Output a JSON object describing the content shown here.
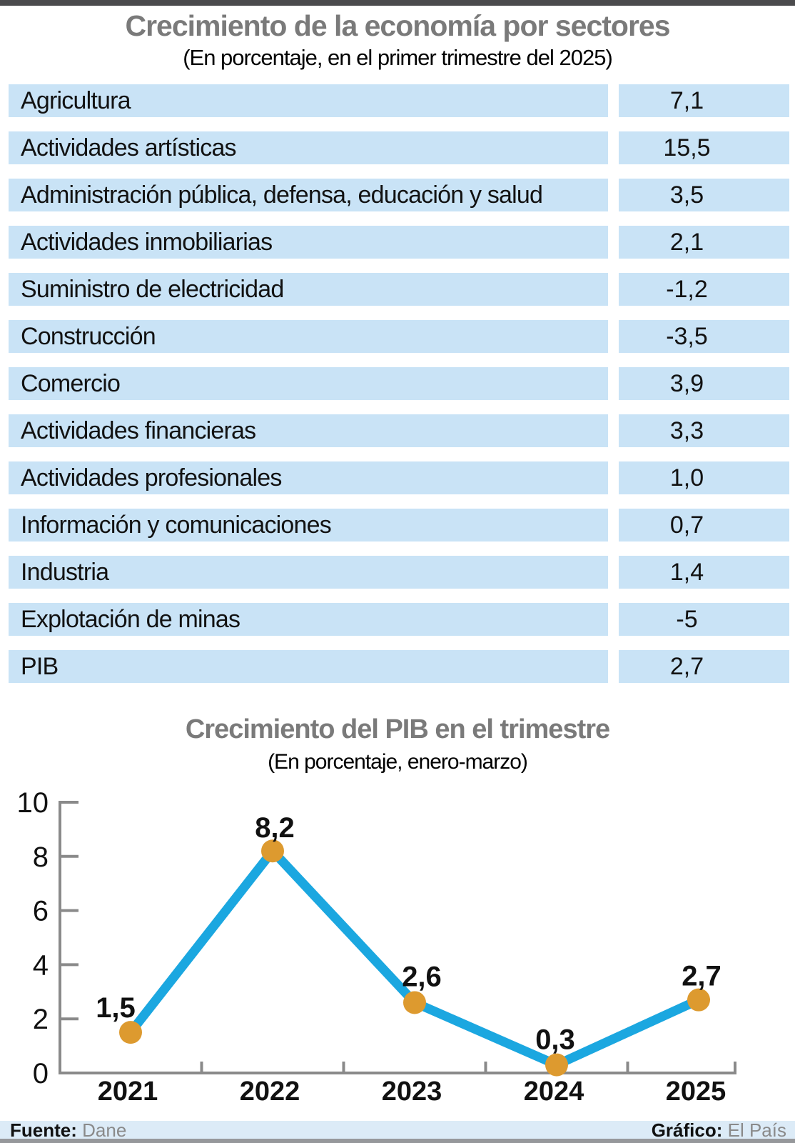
{
  "header": {
    "top_bar_color": "#4b4b4d",
    "title_color": "#7a7a7a"
  },
  "chart_data": [
    {
      "type": "table",
      "title": "Crecimiento de la economía por sectores",
      "subtitle": "(En porcentaje, en el primer trimestre del 2025)",
      "row_background": "#c9e3f6",
      "rows": [
        {
          "label": "Agricultura",
          "value": "7,1"
        },
        {
          "label": "Actividades artísticas",
          "value": "15,5"
        },
        {
          "label": "Administración pública, defensa, educación y salud",
          "value": "3,5"
        },
        {
          "label": "Actividades inmobiliarias",
          "value": "2,1"
        },
        {
          "label": "Suministro de electricidad",
          "value": "-1,2"
        },
        {
          "label": "Construcción",
          "value": "-3,5"
        },
        {
          "label": "Comercio",
          "value": "3,9"
        },
        {
          "label": "Actividades financieras",
          "value": "3,3"
        },
        {
          "label": "Actividades profesionales",
          "value": "1,0"
        },
        {
          "label": "Información y comunicaciones",
          "value": "0,7"
        },
        {
          "label": "Industria",
          "value": "1,4"
        },
        {
          "label": "Explotación de minas",
          "value": "-5"
        },
        {
          "label": "PIB",
          "value": "2,7"
        }
      ]
    },
    {
      "type": "line",
      "title": "Crecimiento del PIB en el trimestre",
      "subtitle": "(En porcentaje, enero-marzo)",
      "categories": [
        "2021",
        "2022",
        "2023",
        "2024",
        "2025"
      ],
      "values": [
        1.5,
        8.2,
        2.6,
        0.3,
        2.7
      ],
      "value_labels": [
        "1,5",
        "8,2",
        "2,6",
        "0,3",
        "2,7"
      ],
      "ylim": [
        0,
        10
      ],
      "yticks": [
        0,
        2,
        4,
        6,
        8,
        10
      ],
      "grid": false,
      "legend": "none",
      "line_color": "#1ba7e0",
      "marker_color": "#dd9a2f",
      "axis_color": "#8a8a8a"
    }
  ],
  "footer": {
    "source_label": "Fuente:",
    "source": "Dane",
    "credit_label": "Gráfico:",
    "credit": "El País",
    "bar_color": "#dcebf7"
  }
}
